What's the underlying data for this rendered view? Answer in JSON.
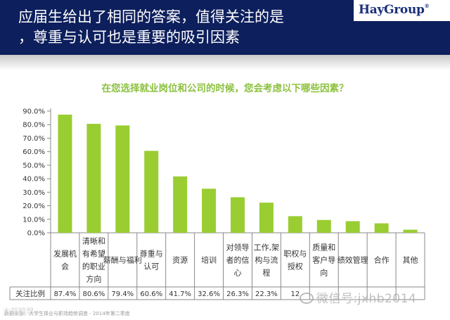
{
  "header": {
    "title_line1": "应届生给出了相同的答案，值得关注的是",
    "title_line2": "，尊重与认可也是重要的吸引因素",
    "logo": "HayGroup"
  },
  "question": "在您选择就业岗位和公司的时候，您会考虑以下哪些因素？",
  "colors": {
    "bar": "#9acd32",
    "header": "#0d1f5c",
    "question": "#8cc13f"
  },
  "chart_data": {
    "type": "bar",
    "title": "在您选择就业岗位和公司的时候，您会考虑以下哪些因素？",
    "categories": [
      "发展机会",
      "清晰和有希望的职业方向",
      "薪酬与福利",
      "尊重与认可",
      "资源",
      "培训",
      "对领导者的信心",
      "工作,架构与流程",
      "职权与授权",
      "质量和客户导向",
      "绩效管理",
      "合作",
      "其他"
    ],
    "category_lines": [
      [
        "发展机",
        "会"
      ],
      [
        "清晰和",
        "有希望",
        "的职业",
        "方向"
      ],
      [
        "薪酬与福利"
      ],
      [
        "尊重与",
        "认可"
      ],
      [
        "资源"
      ],
      [
        "培训"
      ],
      [
        "对领导",
        "者的信",
        "心"
      ],
      [
        "工作,架",
        "构与流",
        "程"
      ],
      [
        "职权与",
        "授权"
      ],
      [
        "质量和",
        "客户导",
        "向"
      ],
      [
        "绩效管理"
      ],
      [
        "合作"
      ],
      [
        "其他"
      ]
    ],
    "values": [
      87.4,
      80.6,
      79.4,
      60.6,
      41.7,
      32.6,
      26.3,
      22.3,
      12.3,
      9.5,
      8.6,
      7.0,
      2.3
    ],
    "table_label": "关注比例",
    "table_values": [
      "87.4%",
      "80.6%",
      "79.4%",
      "60.6%",
      "41.7%",
      "32.6%",
      "26.3%",
      "22.3%",
      "12",
      "",
      "",
      "",
      ""
    ],
    "yticks": [
      "0.0%",
      "10.0%",
      "20.0%",
      "30.0%",
      "40.0%",
      "50.0%",
      "60.0%",
      "70.0%",
      "80.0%",
      "90.0%"
    ],
    "ylim": [
      0,
      90
    ],
    "grid": false,
    "legend": "none"
  },
  "footer": {
    "source_note": "数据来源：大学生择业与职场趋势调查 - 2014年第二季度",
    "watermark_left": "大就暗想",
    "watermark_right": "微信号:jxhb2014"
  }
}
